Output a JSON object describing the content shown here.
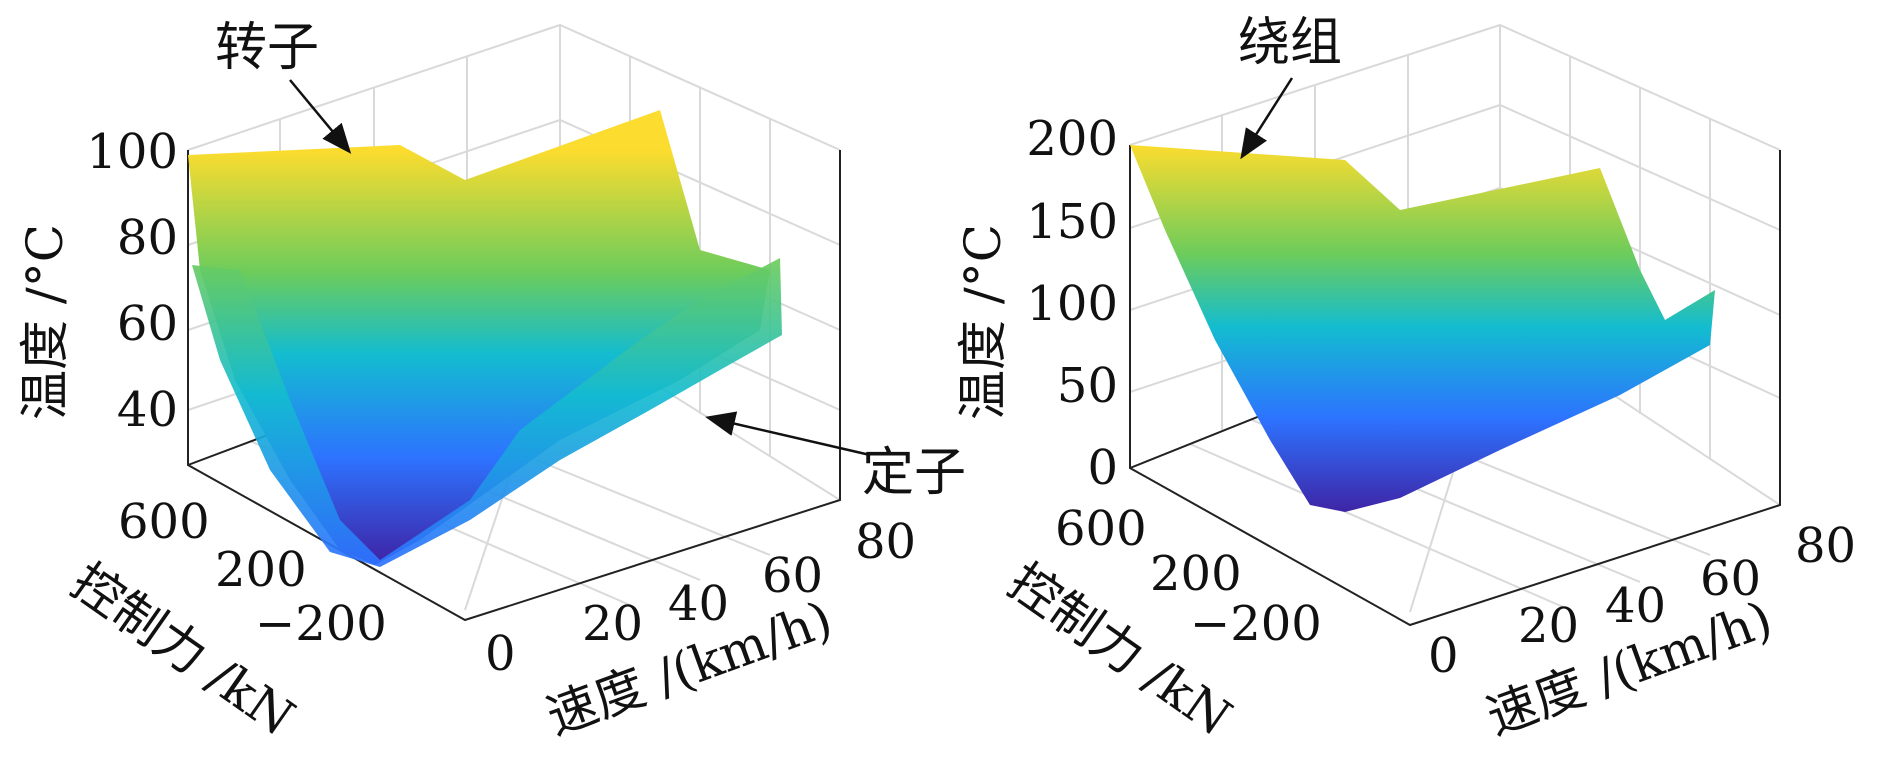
{
  "colors": {
    "surface_low": "#3e26a8",
    "surface_mid1": "#2d73ff",
    "surface_mid2": "#13bcd0",
    "surface_mid3": "#6ccc5c",
    "surface_high": "#fcdc2e",
    "grid": "#d9d9d9",
    "axis": "#222222",
    "background": "#ffffff"
  },
  "chart_data": [
    {
      "type": "surface",
      "zlabel": "温度 /°C",
      "xlabel": "速度 /(km/h)",
      "ylabel": "控制力 /kN",
      "x_ticks": [
        "0",
        "20",
        "40",
        "60",
        "80"
      ],
      "y_ticks": [
        "600",
        "200",
        "−200"
      ],
      "z_ticks": [
        "100",
        "80",
        "60",
        "40"
      ],
      "xlim": [
        0,
        80
      ],
      "ylim": [
        -400,
        600
      ],
      "zlim": [
        30,
        100
      ],
      "grid": true,
      "series": [
        {
          "name": "转子",
          "control_force_kN": [
            600,
            200,
            -200
          ],
          "speed_kmh": [
            0,
            40,
            80
          ],
          "temperature_C": [
            [
              100,
              93,
              98
            ],
            [
              60,
              55,
              58
            ],
            [
              32,
              45,
              55
            ]
          ]
        },
        {
          "name": "定子",
          "control_force_kN": [
            600,
            200,
            -200
          ],
          "speed_kmh": [
            0,
            40,
            80
          ],
          "temperature_C": [
            [
              75,
              70,
              72
            ],
            [
              52,
              48,
              50
            ],
            [
              31,
              40,
              50
            ]
          ]
        }
      ],
      "annotations": [
        {
          "text": "转子",
          "target": "rotor surface"
        },
        {
          "text": "定子",
          "target": "stator surface"
        }
      ]
    },
    {
      "type": "surface",
      "zlabel": "温度 /°C",
      "xlabel": "速度 /(km/h)",
      "ylabel": "控制力 /kN",
      "x_ticks": [
        "0",
        "20",
        "40",
        "60",
        "80"
      ],
      "y_ticks": [
        "600",
        "200",
        "−200"
      ],
      "z_ticks": [
        "200",
        "150",
        "100",
        "50",
        "0"
      ],
      "xlim": [
        0,
        80
      ],
      "ylim": [
        -400,
        600
      ],
      "zlim": [
        0,
        200
      ],
      "grid": true,
      "series": [
        {
          "name": "绕组",
          "control_force_kN": [
            600,
            200,
            -200
          ],
          "speed_kmh": [
            0,
            40,
            80
          ],
          "temperature_C": [
            [
              195,
              170,
              180
            ],
            [
              100,
              85,
              95
            ],
            [
              25,
              40,
              70
            ]
          ]
        }
      ],
      "annotations": [
        {
          "text": "绕组",
          "target": "winding surface"
        }
      ]
    }
  ]
}
